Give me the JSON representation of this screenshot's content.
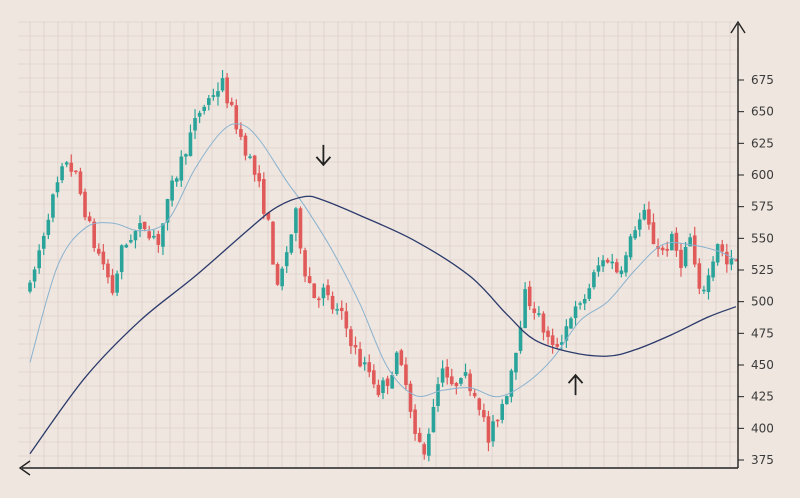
{
  "chart_data": {
    "type": "candlestick",
    "title": "",
    "xlabel": "",
    "ylabel": "",
    "ylim": [
      360,
      685
    ],
    "y_ticks": [
      "375",
      "400",
      "425",
      "450",
      "475",
      "500",
      "525",
      "550",
      "575",
      "600",
      "625",
      "650",
      "675"
    ],
    "grid": true,
    "legend": "none",
    "colors": {
      "background": "#efe6df",
      "grid": "#d9c9c6",
      "up": "#2aa49a",
      "down": "#e05a5a",
      "fast_ma": "#8ab2cf",
      "slow_ma": "#2b3a6b",
      "axis": "#222222"
    },
    "price_path": [
      {
        "i": 0,
        "p": 510
      },
      {
        "i": 2,
        "p": 540
      },
      {
        "i": 4,
        "p": 570
      },
      {
        "i": 6,
        "p": 592
      },
      {
        "i": 8,
        "p": 612
      },
      {
        "i": 10,
        "p": 598
      },
      {
        "i": 12,
        "p": 572
      },
      {
        "i": 14,
        "p": 545
      },
      {
        "i": 16,
        "p": 530
      },
      {
        "i": 18,
        "p": 508
      },
      {
        "i": 20,
        "p": 540
      },
      {
        "i": 22,
        "p": 552
      },
      {
        "i": 25,
        "p": 560
      },
      {
        "i": 28,
        "p": 548
      },
      {
        "i": 31,
        "p": 590
      },
      {
        "i": 34,
        "p": 622
      },
      {
        "i": 37,
        "p": 650
      },
      {
        "i": 40,
        "p": 665
      },
      {
        "i": 42,
        "p": 672
      },
      {
        "i": 44,
        "p": 650
      },
      {
        "i": 46,
        "p": 630
      },
      {
        "i": 48,
        "p": 612
      },
      {
        "i": 50,
        "p": 590
      },
      {
        "i": 52,
        "p": 560
      },
      {
        "i": 54,
        "p": 508
      },
      {
        "i": 56,
        "p": 540
      },
      {
        "i": 58,
        "p": 568
      },
      {
        "i": 60,
        "p": 525
      },
      {
        "i": 62,
        "p": 505
      },
      {
        "i": 64,
        "p": 508
      },
      {
        "i": 66,
        "p": 495
      },
      {
        "i": 68,
        "p": 488
      },
      {
        "i": 70,
        "p": 470
      },
      {
        "i": 72,
        "p": 452
      },
      {
        "i": 74,
        "p": 445
      },
      {
        "i": 76,
        "p": 430
      },
      {
        "i": 78,
        "p": 438
      },
      {
        "i": 80,
        "p": 455
      },
      {
        "i": 82,
        "p": 440
      },
      {
        "i": 84,
        "p": 395
      },
      {
        "i": 86,
        "p": 378
      },
      {
        "i": 88,
        "p": 420
      },
      {
        "i": 90,
        "p": 452
      },
      {
        "i": 92,
        "p": 430
      },
      {
        "i": 94,
        "p": 445
      },
      {
        "i": 96,
        "p": 435
      },
      {
        "i": 98,
        "p": 420
      },
      {
        "i": 100,
        "p": 390
      },
      {
        "i": 102,
        "p": 410
      },
      {
        "i": 104,
        "p": 430
      },
      {
        "i": 106,
        "p": 465
      },
      {
        "i": 108,
        "p": 505
      },
      {
        "i": 110,
        "p": 495
      },
      {
        "i": 112,
        "p": 478
      },
      {
        "i": 114,
        "p": 462
      },
      {
        "i": 116,
        "p": 472
      },
      {
        "i": 118,
        "p": 490
      },
      {
        "i": 120,
        "p": 495
      },
      {
        "i": 122,
        "p": 512
      },
      {
        "i": 124,
        "p": 528
      },
      {
        "i": 126,
        "p": 535
      },
      {
        "i": 128,
        "p": 525
      },
      {
        "i": 130,
        "p": 535
      },
      {
        "i": 132,
        "p": 560
      },
      {
        "i": 134,
        "p": 568
      },
      {
        "i": 136,
        "p": 548
      },
      {
        "i": 138,
        "p": 540
      },
      {
        "i": 140,
        "p": 548
      },
      {
        "i": 142,
        "p": 532
      },
      {
        "i": 144,
        "p": 550
      },
      {
        "i": 146,
        "p": 505
      },
      {
        "i": 148,
        "p": 520
      },
      {
        "i": 150,
        "p": 548
      },
      {
        "i": 152,
        "p": 528
      },
      {
        "i": 154,
        "p": 532
      }
    ],
    "ma_fast": [
      {
        "i": 0,
        "v": 452
      },
      {
        "i": 6,
        "v": 528
      },
      {
        "i": 12,
        "v": 558
      },
      {
        "i": 18,
        "v": 562
      },
      {
        "i": 24,
        "v": 556
      },
      {
        "i": 30,
        "v": 564
      },
      {
        "i": 36,
        "v": 605
      },
      {
        "i": 42,
        "v": 635
      },
      {
        "i": 46,
        "v": 640
      },
      {
        "i": 50,
        "v": 628
      },
      {
        "i": 56,
        "v": 595
      },
      {
        "i": 60,
        "v": 575
      },
      {
        "i": 66,
        "v": 540
      },
      {
        "i": 72,
        "v": 498
      },
      {
        "i": 78,
        "v": 448
      },
      {
        "i": 84,
        "v": 426
      },
      {
        "i": 90,
        "v": 430
      },
      {
        "i": 96,
        "v": 432
      },
      {
        "i": 102,
        "v": 425
      },
      {
        "i": 108,
        "v": 435
      },
      {
        "i": 114,
        "v": 455
      },
      {
        "i": 120,
        "v": 485
      },
      {
        "i": 126,
        "v": 500
      },
      {
        "i": 132,
        "v": 525
      },
      {
        "i": 138,
        "v": 545
      },
      {
        "i": 144,
        "v": 545
      },
      {
        "i": 150,
        "v": 540
      },
      {
        "i": 154,
        "v": 533
      }
    ],
    "ma_slow": [
      {
        "i": 0,
        "v": 380
      },
      {
        "i": 12,
        "v": 440
      },
      {
        "i": 24,
        "v": 485
      },
      {
        "i": 36,
        "v": 520
      },
      {
        "i": 48,
        "v": 558
      },
      {
        "i": 54,
        "v": 575
      },
      {
        "i": 60,
        "v": 583
      },
      {
        "i": 64,
        "v": 580
      },
      {
        "i": 72,
        "v": 568
      },
      {
        "i": 84,
        "v": 548
      },
      {
        "i": 96,
        "v": 520
      },
      {
        "i": 104,
        "v": 490
      },
      {
        "i": 110,
        "v": 470
      },
      {
        "i": 118,
        "v": 460
      },
      {
        "i": 126,
        "v": 457
      },
      {
        "i": 132,
        "v": 462
      },
      {
        "i": 140,
        "v": 474
      },
      {
        "i": 148,
        "v": 488
      },
      {
        "i": 154,
        "v": 496
      }
    ],
    "annotations": [
      {
        "kind": "down-arrow",
        "i": 64,
        "price": 608
      },
      {
        "kind": "up-arrow",
        "i": 119,
        "price": 442
      }
    ]
  }
}
